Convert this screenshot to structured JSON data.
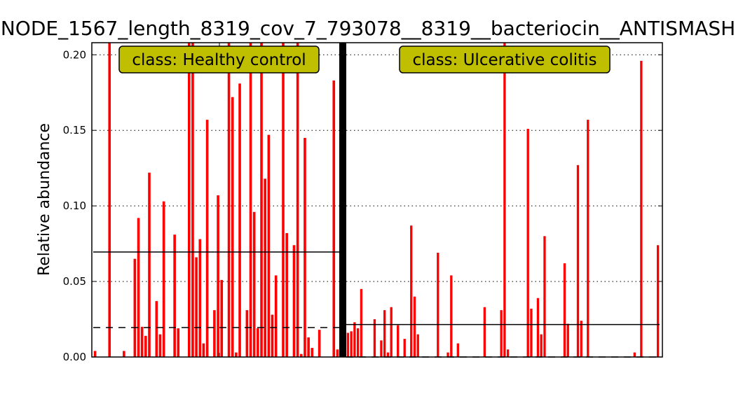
{
  "chart_data": {
    "type": "bar",
    "title": "NODE_1567_length_8319_cov_7_793078__8319__bacteriocin__ANTISMASH",
    "xlabel": "",
    "ylabel": "Relative abundance",
    "ylim": [
      0,
      0.208
    ],
    "yticks": [
      "0.00",
      "0.05",
      "0.10",
      "0.15",
      "0.20"
    ],
    "grid": "horizontal-dotted",
    "bar_color": "#ff0000",
    "separator_color": "#000000",
    "label_box_color": "#bfbf00",
    "classes": [
      {
        "name": "class: Healthy control",
        "mean": 0.0695,
        "median": 0.0195,
        "values": [
          0.004,
          0,
          0,
          0,
          0.21,
          0,
          0,
          0,
          0.004,
          0,
          0,
          0.065,
          0.092,
          0.02,
          0.014,
          0.122,
          0,
          0.037,
          0.015,
          0.103,
          0,
          0,
          0.081,
          0.019,
          0,
          0,
          0.21,
          0.21,
          0.066,
          0.078,
          0.009,
          0.157,
          0,
          0.031,
          0.107,
          0.051,
          0,
          0.21,
          0.172,
          0.003,
          0.181,
          0,
          0.031,
          0.21,
          0.096,
          0.019,
          0.21,
          0.118,
          0.147,
          0.028,
          0.054,
          0,
          0.21,
          0.082,
          0,
          0.074,
          0.21,
          0.002,
          0.145,
          0.013,
          0.006,
          0,
          0.018,
          0,
          0,
          0,
          0.183,
          0.005
        ]
      },
      {
        "name": "class: Ulcerative colitis",
        "mean": 0.0215,
        "median": 0,
        "values": [
          0.016,
          0.017,
          0.023,
          0.019,
          0.045,
          0,
          0,
          0,
          0.025,
          0,
          0.011,
          0.031,
          0.003,
          0.033,
          0,
          0.021,
          0,
          0.012,
          0,
          0.087,
          0.04,
          0.015,
          0,
          0,
          0,
          0,
          0,
          0.069,
          0,
          0,
          0.003,
          0.054,
          0,
          0.009,
          0,
          0,
          0,
          0,
          0,
          0,
          0,
          0.033,
          0,
          0,
          0,
          0,
          0.031,
          0.21,
          0.005,
          0,
          0,
          0,
          0,
          0,
          0.151,
          0.032,
          0,
          0.039,
          0.015,
          0.08,
          0,
          0,
          0,
          0,
          0,
          0.062,
          0.022,
          0,
          0,
          0.127,
          0.024,
          0,
          0.157,
          0,
          0,
          0,
          0,
          0,
          0,
          0,
          0,
          0,
          0,
          0,
          0,
          0,
          0.003,
          0,
          0.196,
          0,
          0,
          0,
          0,
          0.074
        ]
      }
    ]
  }
}
